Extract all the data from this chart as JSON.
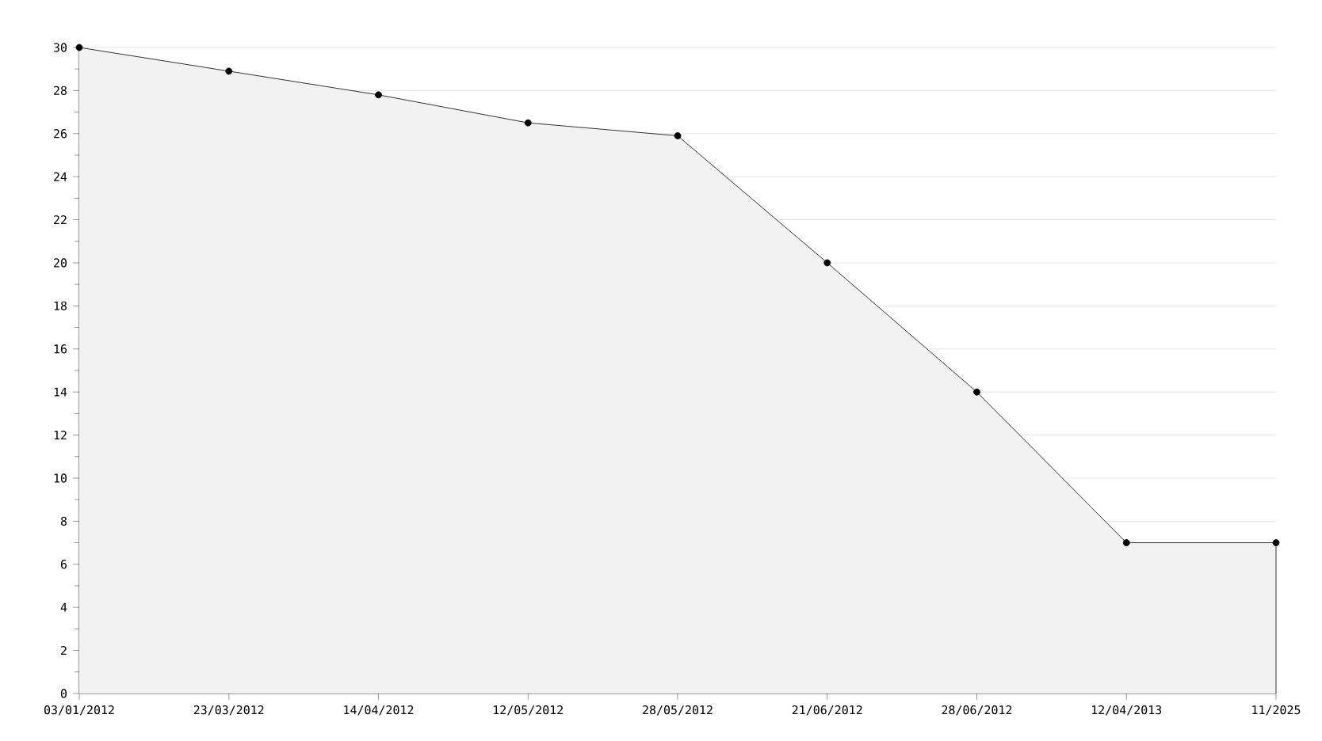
{
  "chart_data": {
    "type": "area",
    "categories": [
      "03/01/2012",
      "23/03/2012",
      "14/04/2012",
      "12/05/2012",
      "28/05/2012",
      "21/06/2012",
      "28/06/2012",
      "12/04/2013",
      "11/2025"
    ],
    "values": [
      30,
      28.9,
      27.8,
      26.5,
      25.9,
      20,
      14,
      7,
      7
    ],
    "color": "#000000",
    "ylim": [
      0,
      30
    ],
    "yticks": [
      0,
      2,
      4,
      6,
      8,
      10,
      12,
      14,
      16,
      18,
      20,
      22,
      24,
      26,
      28,
      30
    ],
    "grid": "y",
    "marker": "circle",
    "line_style": "solid"
  }
}
